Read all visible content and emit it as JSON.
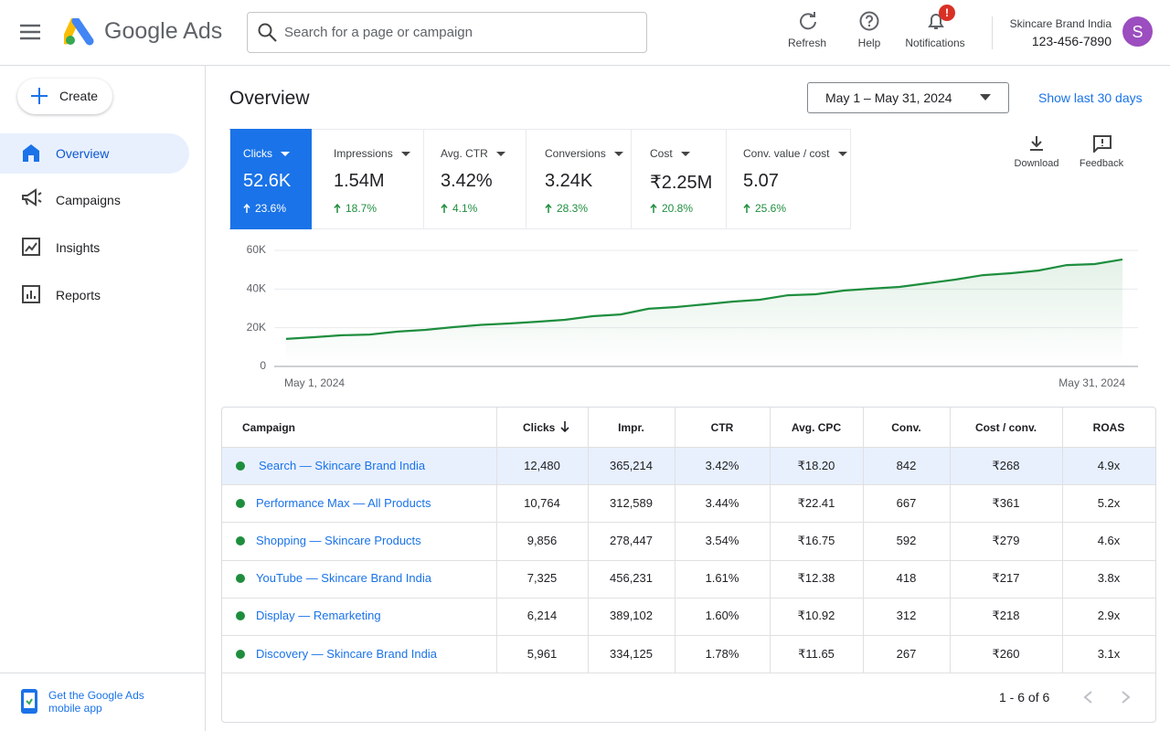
{
  "header": {
    "app_name": "Google Ads",
    "search_placeholder": "Search for a page or campaign",
    "actions": [
      {
        "label": "Refresh"
      },
      {
        "label": "Help"
      },
      {
        "label": "Notifications",
        "badge": "!"
      }
    ],
    "account": {
      "name": "Skincare Brand India",
      "id": "123-456-7890",
      "avatar": "S"
    }
  },
  "sidebar": {
    "create": "Create",
    "items": [
      "Overview",
      "Campaigns",
      "Insights",
      "Reports"
    ],
    "footer": "Get the Google Ads mobile app"
  },
  "overview": {
    "title": "Overview",
    "date_range": "May 1 – May 31, 2024",
    "show_last": "Show last 30 days",
    "tools": [
      "Download",
      "Feedback"
    ]
  },
  "metrics": [
    {
      "name": "Clicks",
      "value": "52.6K",
      "change": "23.6%"
    },
    {
      "name": "Impressions",
      "value": "1.54M",
      "change": "18.7%"
    },
    {
      "name": "Avg. CTR",
      "value": "3.42%",
      "change": "4.1%"
    },
    {
      "name": "Conversions",
      "value": "3.24K",
      "change": "28.3%"
    },
    {
      "name": "Cost",
      "value": "₹2.25M",
      "change": "20.8%"
    },
    {
      "name": "Conv. value / cost",
      "value": "5.07",
      "change": "25.6%"
    }
  ],
  "chart_data": {
    "type": "line",
    "x": [
      "May 1, 2024",
      null,
      null,
      null,
      null,
      null,
      null,
      null,
      null,
      null,
      null,
      null,
      null,
      null,
      null,
      null,
      null,
      null,
      null,
      null,
      null,
      null,
      null,
      null,
      null,
      null,
      null,
      null,
      null,
      null,
      "May 31, 2024"
    ],
    "values": [
      14200,
      15100,
      16100,
      16500,
      18000,
      18900,
      20300,
      21500,
      22200,
      23100,
      24100,
      26000,
      26900,
      29800,
      30700,
      32100,
      33500,
      34500,
      36800,
      37300,
      39200,
      40200,
      41100,
      43000,
      44900,
      47200,
      48200,
      49600,
      52400,
      52900,
      55300
    ],
    "color": "#1e8e3e",
    "ylim": [
      0,
      60000
    ],
    "yticks": [
      0,
      {
        "value": 20000,
        "label": "20K"
      },
      {
        "value": 40000,
        "label": "40K"
      },
      {
        "value": 60000,
        "label": "60K"
      }
    ],
    "grid": true
  },
  "table": {
    "columns": [
      "Campaign",
      "Clicks",
      "Impr.",
      "CTR",
      "Avg. CPC",
      "Conv.",
      "Cost / conv.",
      "ROAS"
    ],
    "rows": [
      [
        "Search — Skincare Brand India",
        "12,480",
        "365,214",
        "3.42%",
        "₹18.20",
        "842",
        "₹268",
        "4.9x"
      ],
      [
        "Performance Max — All Products",
        "10,764",
        "312,589",
        "3.44%",
        "₹22.41",
        "667",
        "₹361",
        "5.2x"
      ],
      [
        "Shopping — Skincare Products",
        "9,856",
        "278,447",
        "3.54%",
        "₹16.75",
        "592",
        "₹279",
        "4.6x"
      ],
      [
        "YouTube — Skincare Brand India",
        "7,325",
        "456,231",
        "1.61%",
        "₹12.38",
        "418",
        "₹217",
        "3.8x"
      ],
      [
        "Display — Remarketing",
        "6,214",
        "389,102",
        "1.60%",
        "₹10.92",
        "312",
        "₹218",
        "2.9x"
      ],
      [
        "Discovery — Skincare Brand India",
        "5,961",
        "334,125",
        "1.78%",
        "₹11.65",
        "267",
        "₹260",
        "3.1x"
      ]
    ]
  },
  "pagination": "1 - 6 of 6"
}
